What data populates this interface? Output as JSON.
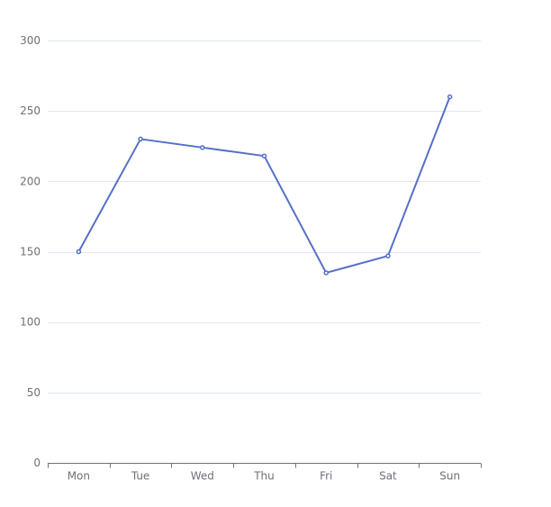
{
  "chart_data": {
    "type": "line",
    "categories": [
      "Mon",
      "Tue",
      "Wed",
      "Thu",
      "Fri",
      "Sat",
      "Sun"
    ],
    "series": [
      {
        "values": [
          150,
          230,
          224,
          218,
          135,
          147,
          260
        ]
      }
    ],
    "ylim": [
      0,
      300
    ],
    "yticks": [
      0,
      50,
      100,
      150,
      200,
      250,
      300
    ],
    "grid": true,
    "legend": "none",
    "colors": {
      "line": "#5470c6",
      "grid": "#e0e6f1",
      "axis": "#6e7079",
      "label": "#6e7079",
      "point_fill": "#ffffff"
    }
  }
}
